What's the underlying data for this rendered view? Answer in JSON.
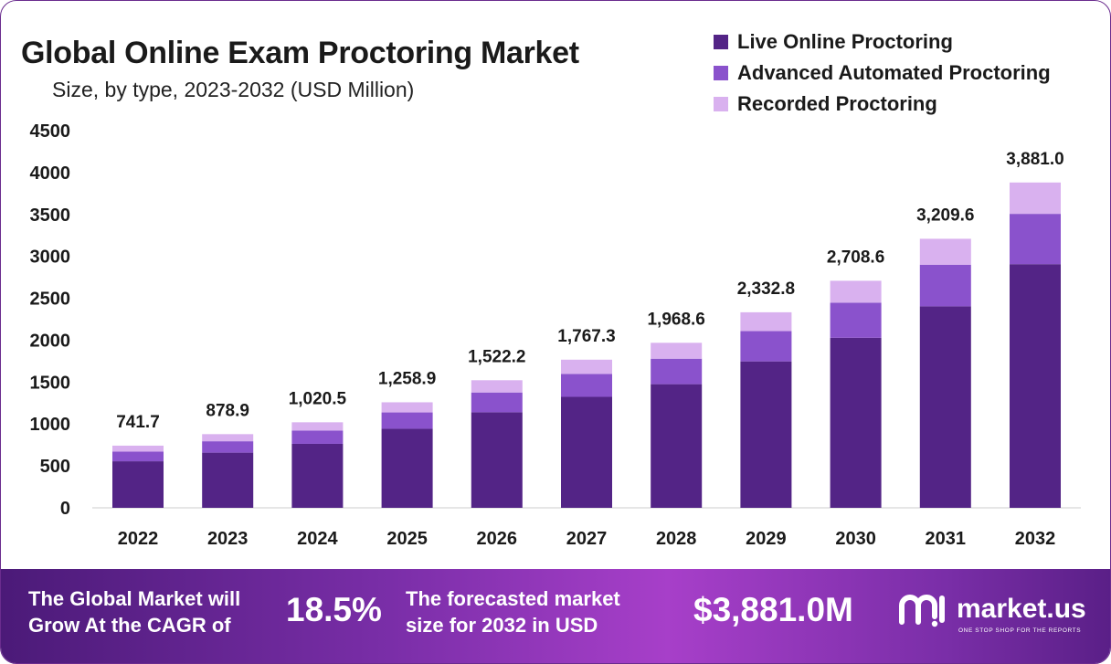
{
  "header": {
    "title": "Global Online Exam Proctoring Market",
    "subtitle": "Size, by type, 2023-2032 (USD Million)"
  },
  "colors": {
    "live": "#532486",
    "advanced": "#8a52cc",
    "recorded": "#d9b1ef",
    "axis_text": "#1a1a1a",
    "baseline": "#cccccc"
  },
  "chart_data": {
    "type": "bar",
    "stacked": true,
    "categories": [
      "2022",
      "2023",
      "2024",
      "2025",
      "2026",
      "2027",
      "2028",
      "2029",
      "2030",
      "2031",
      "2032"
    ],
    "series": [
      {
        "name": "Live Online Proctoring",
        "values": [
          555,
          658,
          763,
          943,
          1140,
          1324,
          1475,
          1747,
          2028,
          2404,
          2907
        ]
      },
      {
        "name": "Advanced Automated Proctoring",
        "values": [
          115,
          136,
          158,
          195,
          236,
          273,
          304,
          361,
          419,
          496,
          600
        ]
      },
      {
        "name": "Recorded Proctoring",
        "values": [
          71.7,
          84.9,
          99.5,
          120.9,
          146.2,
          170.3,
          189.6,
          224.8,
          261.6,
          309.6,
          374
        ]
      }
    ],
    "totals": [
      "741.7",
      "878.9",
      "1,020.5",
      "1,258.9",
      "1,522.2",
      "1,767.3",
      "1,968.6",
      "2,332.8",
      "2,708.6",
      "3,209.6",
      "3,881.0"
    ],
    "yticks": [
      "0",
      "500",
      "1000",
      "1500",
      "2000",
      "2500",
      "3000",
      "3500",
      "4000",
      "4500"
    ],
    "ylim": [
      0,
      4500
    ],
    "grid": false,
    "legend_position": "top-right"
  },
  "footer": {
    "cagr_text_line1": "The Global Market will",
    "cagr_text_line2": "Grow At the CAGR of",
    "cagr_value": "18.5%",
    "forecast_text_line1": "The forecasted market",
    "forecast_text_line2": "size for 2032 in USD",
    "forecast_value": "$3,881.0M",
    "brand_name": "market.us",
    "brand_tagline": "ONE STOP SHOP FOR THE REPORTS",
    "brand_logo_icon": "market-us-logo-icon"
  }
}
